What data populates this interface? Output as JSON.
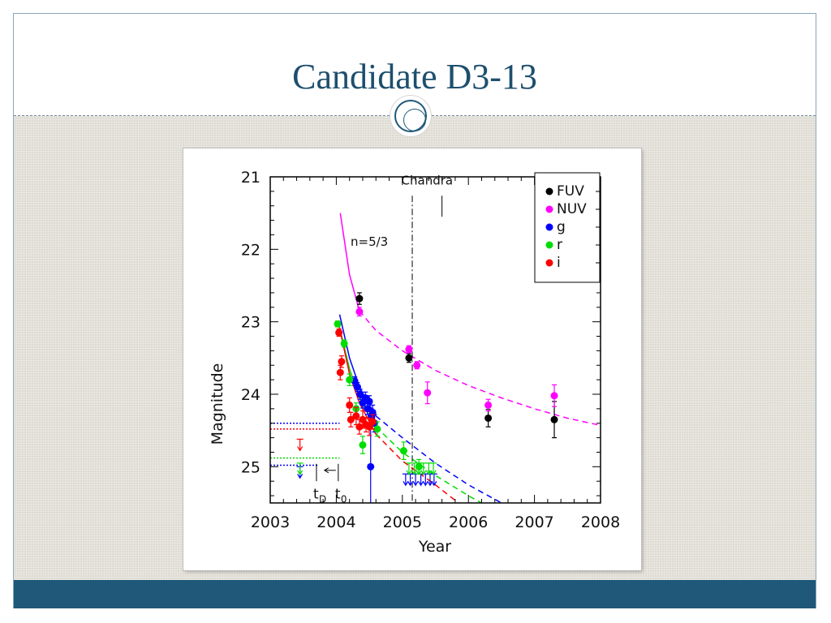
{
  "slide": {
    "title": "Candidate D3-13",
    "colors": {
      "title": "#1d4f6e",
      "accent": "#1f5879",
      "background": "#dedbd2"
    }
  },
  "chart_data": {
    "type": "scatter",
    "xlabel": "Year",
    "ylabel": "Magnitude",
    "xlim": [
      2003,
      2008
    ],
    "ylim": [
      25.5,
      21
    ],
    "y_inverted": true,
    "x_ticks": [
      2003,
      2004,
      2005,
      2006,
      2007,
      2008
    ],
    "y_ticks": [
      21,
      22,
      23,
      24,
      25
    ],
    "legend": [
      "FUV",
      "NUV",
      "g",
      "r",
      "i"
    ],
    "legend_position": "top-right",
    "series": [
      {
        "name": "FUV",
        "color": "#000000",
        "points": [
          [
            2004.35,
            22.68,
            0.08
          ],
          [
            2005.1,
            23.5,
            0.06
          ],
          [
            2006.3,
            24.33,
            0.12
          ],
          [
            2007.3,
            24.35,
            0.25
          ]
        ]
      },
      {
        "name": "NUV",
        "color": "#ff00ff",
        "points": [
          [
            2004.35,
            22.86,
            0.06
          ],
          [
            2005.1,
            23.38,
            0.05
          ],
          [
            2005.22,
            23.6,
            0.05
          ],
          [
            2005.38,
            23.98,
            0.15
          ],
          [
            2006.3,
            24.15,
            0.08
          ],
          [
            2007.3,
            24.02,
            0.15
          ]
        ]
      },
      {
        "name": "g",
        "color": "#0000ff",
        "points": [
          [
            2004.28,
            23.82,
            0.06
          ],
          [
            2004.32,
            23.9,
            0.06
          ],
          [
            2004.36,
            24.0,
            0.07
          ],
          [
            2004.4,
            24.12,
            0.07
          ],
          [
            2004.44,
            24.05,
            0.08
          ],
          [
            2004.47,
            24.2,
            0.08
          ],
          [
            2004.5,
            24.1,
            0.08
          ],
          [
            2004.53,
            24.3,
            0.1
          ],
          [
            2004.55,
            24.25,
            0.1
          ],
          [
            2004.58,
            24.4,
            0.12
          ],
          [
            2004.52,
            25.0,
            0.6
          ]
        ],
        "upper_limits": [
          [
            2003.45,
            25.0
          ],
          [
            2005.05,
            25.1
          ],
          [
            2005.12,
            25.1
          ],
          [
            2005.2,
            25.1
          ],
          [
            2005.28,
            25.1
          ],
          [
            2005.35,
            25.1
          ],
          [
            2005.42,
            25.1
          ],
          [
            2005.48,
            25.1
          ]
        ]
      },
      {
        "name": "r",
        "color": "#00dd00",
        "points": [
          [
            2004.02,
            23.03,
            0.04
          ],
          [
            2004.12,
            23.3,
            0.05
          ],
          [
            2004.2,
            23.8,
            0.08
          ],
          [
            2004.3,
            24.2,
            0.08
          ],
          [
            2004.4,
            24.7,
            0.12
          ],
          [
            2004.62,
            24.48,
            0.1
          ],
          [
            2005.02,
            24.78,
            0.12
          ],
          [
            2005.25,
            25.0,
            0.1
          ]
        ],
        "upper_limits": [
          [
            2003.45,
            24.95
          ],
          [
            2005.1,
            24.95
          ],
          [
            2005.18,
            24.95
          ],
          [
            2005.25,
            24.95
          ],
          [
            2005.32,
            24.95
          ],
          [
            2005.4,
            24.95
          ],
          [
            2005.47,
            24.95
          ]
        ]
      },
      {
        "name": "i",
        "color": "#ff0000",
        "points": [
          [
            2004.04,
            23.15,
            0.05
          ],
          [
            2004.08,
            23.55,
            0.08
          ],
          [
            2004.06,
            23.7,
            0.1
          ],
          [
            2004.2,
            24.15,
            0.1
          ],
          [
            2004.22,
            24.35,
            0.1
          ],
          [
            2004.3,
            24.3,
            0.12
          ],
          [
            2004.35,
            24.45,
            0.1
          ],
          [
            2004.4,
            24.35,
            0.12
          ],
          [
            2004.45,
            24.42,
            0.1
          ],
          [
            2004.5,
            24.45,
            0.12
          ],
          [
            2004.55,
            24.38,
            0.1
          ]
        ],
        "upper_limits": [
          [
            2003.45,
            24.62
          ]
        ]
      }
    ],
    "fits": [
      {
        "label": "n=5/3",
        "color": "#ff00ff",
        "style": "solid",
        "points": [
          [
            2004.06,
            21.5
          ],
          [
            2004.2,
            22.35
          ],
          [
            2004.35,
            22.85
          ]
        ]
      },
      {
        "color": "#ff00ff",
        "style": "dashed",
        "points": [
          [
            2004.35,
            22.85
          ],
          [
            2004.6,
            23.12
          ],
          [
            2005.0,
            23.4
          ],
          [
            2005.5,
            23.67
          ],
          [
            2006.0,
            23.88
          ],
          [
            2006.5,
            24.05
          ],
          [
            2007.0,
            24.2
          ],
          [
            2007.5,
            24.33
          ],
          [
            2008.0,
            24.43
          ]
        ]
      },
      {
        "color": "#0000ff",
        "style": "solid",
        "points": [
          [
            2004.05,
            22.9
          ],
          [
            2004.2,
            23.5
          ],
          [
            2004.35,
            23.9
          ],
          [
            2004.5,
            24.15
          ],
          [
            2004.6,
            24.3
          ]
        ]
      },
      {
        "color": "#0000ff",
        "style": "dashed",
        "points": [
          [
            2004.6,
            24.3
          ],
          [
            2005.0,
            24.6
          ],
          [
            2005.5,
            24.95
          ],
          [
            2006.0,
            25.25
          ],
          [
            2006.5,
            25.5
          ]
        ]
      },
      {
        "color": "#00dd00",
        "style": "solid",
        "points": [
          [
            2004.03,
            23.0
          ],
          [
            2004.2,
            23.65
          ],
          [
            2004.35,
            24.05
          ],
          [
            2004.5,
            24.3
          ],
          [
            2004.6,
            24.45
          ]
        ]
      },
      {
        "color": "#00dd00",
        "style": "dashed",
        "points": [
          [
            2004.6,
            24.45
          ],
          [
            2005.0,
            24.8
          ],
          [
            2005.5,
            25.12
          ],
          [
            2006.0,
            25.4
          ],
          [
            2006.2,
            25.5
          ]
        ]
      },
      {
        "color": "#ff0000",
        "style": "solid",
        "points": [
          [
            2004.04,
            23.05
          ],
          [
            2004.2,
            23.72
          ],
          [
            2004.35,
            24.12
          ],
          [
            2004.5,
            24.38
          ],
          [
            2004.6,
            24.55
          ]
        ]
      },
      {
        "color": "#ff0000",
        "style": "dashed",
        "points": [
          [
            2004.6,
            24.55
          ],
          [
            2005.0,
            24.92
          ],
          [
            2005.5,
            25.25
          ],
          [
            2005.85,
            25.5
          ]
        ]
      },
      {
        "color": "#0000ff",
        "style": "dotted",
        "points": [
          [
            2003.0,
            24.4
          ],
          [
            2004.05,
            24.4
          ]
        ]
      },
      {
        "color": "#ff0000",
        "style": "dotted",
        "points": [
          [
            2003.0,
            24.48
          ],
          [
            2004.05,
            24.48
          ]
        ]
      },
      {
        "color": "#00dd00",
        "style": "dotted",
        "points": [
          [
            2003.0,
            24.88
          ],
          [
            2004.05,
            24.88
          ]
        ]
      },
      {
        "color": "#0000ff",
        "style": "dotted",
        "points": [
          [
            2003.0,
            24.98
          ],
          [
            2003.72,
            24.98
          ]
        ]
      }
    ],
    "annotations": {
      "chandra_label": "Chandra",
      "chandra_line_x": 2005.15,
      "chandra_tick_x": 2005.6,
      "fit_label": "n=5/3",
      "t_d_label": "t",
      "t_d_sub": "D",
      "t_0_label": "t",
      "t_0_sub": "0",
      "t_d_x": 2003.7,
      "t_0_x": 2004.03
    }
  }
}
